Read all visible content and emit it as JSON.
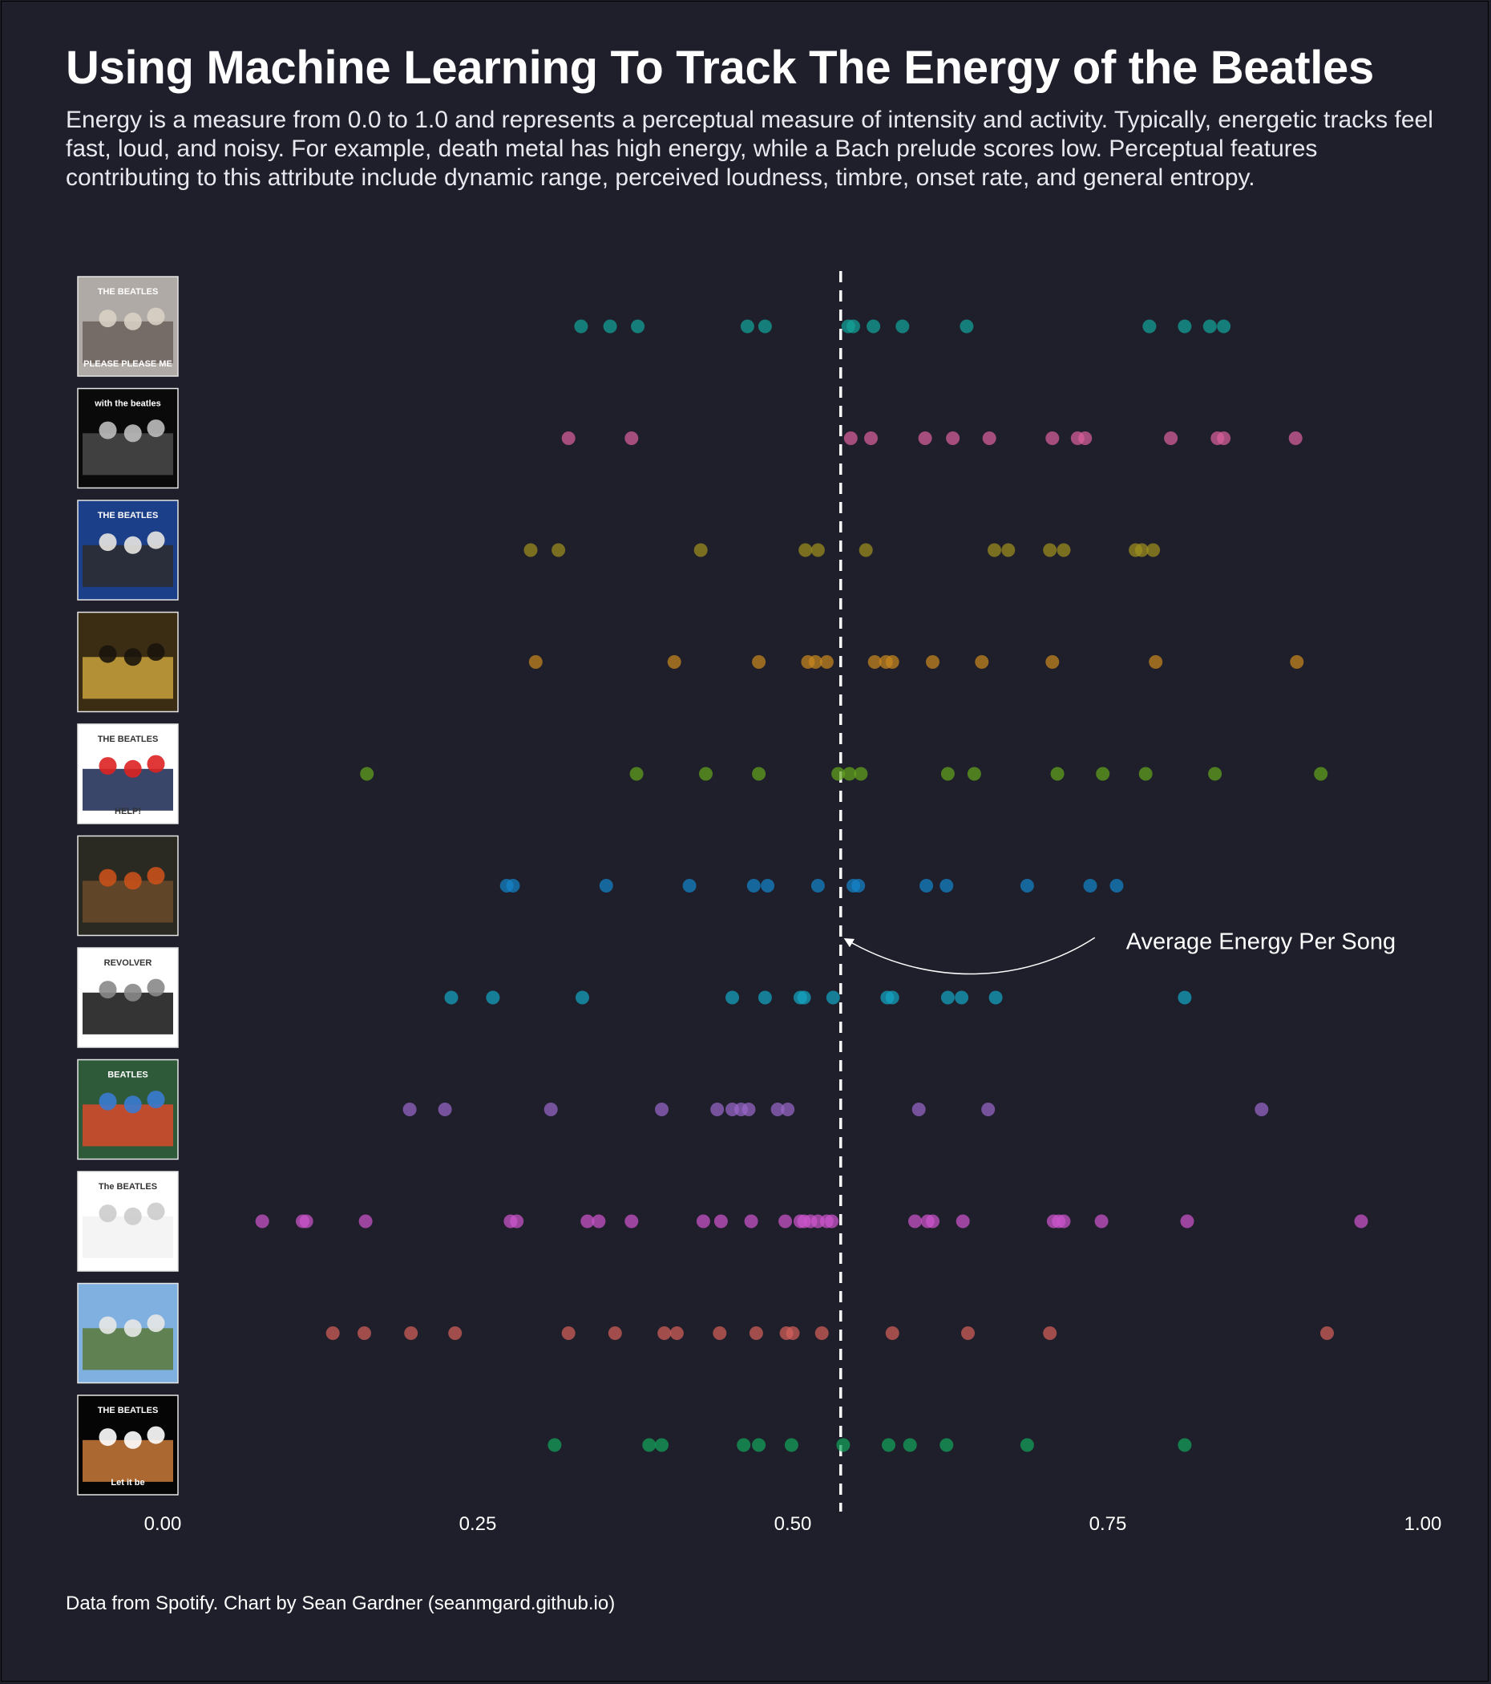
{
  "title": "Using Machine Learning To Track The Energy of the Beatles",
  "subtitle": "Energy is a measure from 0.0 to 1.0 and represents a perceptual measure of intensity and activity. Typically, energetic tracks feel fast, loud, and noisy. For example, death metal has high energy, while a Bach prelude scores low. Perceptual features contributing to this attribute include dynamic range, perceived loudness, timbre, onset rate, and general entropy.",
  "caption": "Data from Spotify. Chart by Sean Gardner (seanmgard.github.io)",
  "annotation": "Average Energy Per Song",
  "chart_data": {
    "type": "scatter",
    "x_range": [
      0,
      1
    ],
    "x_ticks": [
      "0.00",
      "0.25",
      "0.50",
      "0.75",
      "1.00"
    ],
    "reference_line": {
      "value": 0.538,
      "style": "dashed",
      "color": "#ffffff",
      "label": "Average Energy Per Song"
    },
    "grid": false,
    "legend": "none",
    "albums": [
      {
        "color": "#14a39a",
        "cover": [
          "#b0aaa6",
          "#6b615c",
          "#d9d0c4"
        ],
        "cover_text": [
          "THE BEATLES",
          "PLEASE PLEASE ME"
        ],
        "values": [
          0.332,
          0.355,
          0.377,
          0.464,
          0.478,
          0.544,
          0.548,
          0.564,
          0.587,
          0.638,
          0.783,
          0.811,
          0.831,
          0.842
        ]
      },
      {
        "color": "#d9609c",
        "cover": [
          "#0a0a0a",
          "#4a4a4a",
          "#bdbdbd"
        ],
        "cover_text": [
          "with the beatles"
        ],
        "values": [
          0.322,
          0.372,
          0.546,
          0.562,
          0.605,
          0.627,
          0.656,
          0.706,
          0.726,
          0.732,
          0.8,
          0.837,
          0.842,
          0.899
        ]
      },
      {
        "color": "#9e8f1e",
        "cover": [
          "#1c3f8a",
          "#2b2b2b",
          "#e8e6e0"
        ],
        "cover_text": [
          "THE BEATLES"
        ],
        "values": [
          0.292,
          0.314,
          0.427,
          0.51,
          0.52,
          0.558,
          0.66,
          0.671,
          0.704,
          0.715,
          0.772,
          0.777,
          0.786
        ]
      },
      {
        "color": "#c8861e",
        "cover": [
          "#3a2d14",
          "#c9a23c",
          "#1a140c"
        ],
        "cover_text": [],
        "values": [
          0.296,
          0.406,
          0.473,
          0.512,
          0.518,
          0.527,
          0.565,
          0.574,
          0.579,
          0.611,
          0.65,
          0.706,
          0.788,
          0.9
        ]
      },
      {
        "color": "#62a31e",
        "cover": [
          "#ffffff",
          "#16264f",
          "#d22"
        ],
        "cover_text": [
          "THE BEATLES",
          "HELP!"
        ],
        "values": [
          0.162,
          0.376,
          0.431,
          0.473,
          0.536,
          0.545,
          0.554,
          0.623,
          0.644,
          0.71,
          0.746,
          0.78,
          0.835,
          0.919
        ]
      },
      {
        "color": "#1483c9",
        "cover": [
          "#2a2a22",
          "#6a4a2a",
          "#c8501a"
        ],
        "cover_text": [],
        "values": [
          0.273,
          0.278,
          0.352,
          0.418,
          0.469,
          0.48,
          0.52,
          0.548,
          0.552,
          0.606,
          0.622,
          0.686,
          0.736,
          0.757
        ]
      },
      {
        "color": "#14a3c2",
        "cover": [
          "#ffffff",
          "#111111",
          "#888888"
        ],
        "cover_text": [
          "REVOLVER"
        ],
        "values": [
          0.229,
          0.262,
          0.333,
          0.452,
          0.478,
          0.506,
          0.509,
          0.532,
          0.575,
          0.579,
          0.623,
          0.634,
          0.661,
          0.811
        ]
      },
      {
        "color": "#9966c9",
        "cover": [
          "#2f5a3a",
          "#d84a2a",
          "#3a7ad0"
        ],
        "cover_text": [
          "BEATLES"
        ],
        "values": [
          0.196,
          0.224,
          0.308,
          0.396,
          0.44,
          0.452,
          0.459,
          0.465,
          0.488,
          0.496,
          0.6,
          0.655,
          0.872
        ]
      },
      {
        "color": "#cc55cc",
        "cover": [
          "#ffffff",
          "#f2f2f2",
          "#cccccc"
        ],
        "cover_text": [
          "The BEATLES"
        ],
        "values": [
          0.079,
          0.111,
          0.114,
          0.161,
          0.276,
          0.281,
          0.337,
          0.346,
          0.372,
          0.429,
          0.443,
          0.467,
          0.494,
          0.506,
          0.509,
          0.514,
          0.52,
          0.527,
          0.531,
          0.597,
          0.607,
          0.611,
          0.635,
          0.707,
          0.711,
          0.715,
          0.745,
          0.813,
          0.951
        ]
      },
      {
        "color": "#d2605a",
        "cover": [
          "#7fb0e0",
          "#5a7a3a",
          "#e8e8e8"
        ],
        "cover_text": [],
        "values": [
          0.135,
          0.16,
          0.197,
          0.232,
          0.322,
          0.359,
          0.398,
          0.408,
          0.442,
          0.471,
          0.495,
          0.5,
          0.523,
          0.579,
          0.639,
          0.704,
          0.924
        ]
      },
      {
        "color": "#14a35a",
        "cover": [
          "#050505",
          "#c97a3a",
          "#ffffff"
        ],
        "cover_text": [
          "THE BEATLES",
          "Let it be"
        ],
        "values": [
          0.311,
          0.386,
          0.396,
          0.461,
          0.473,
          0.499,
          0.54,
          0.576,
          0.593,
          0.622,
          0.686,
          0.811
        ]
      }
    ]
  }
}
